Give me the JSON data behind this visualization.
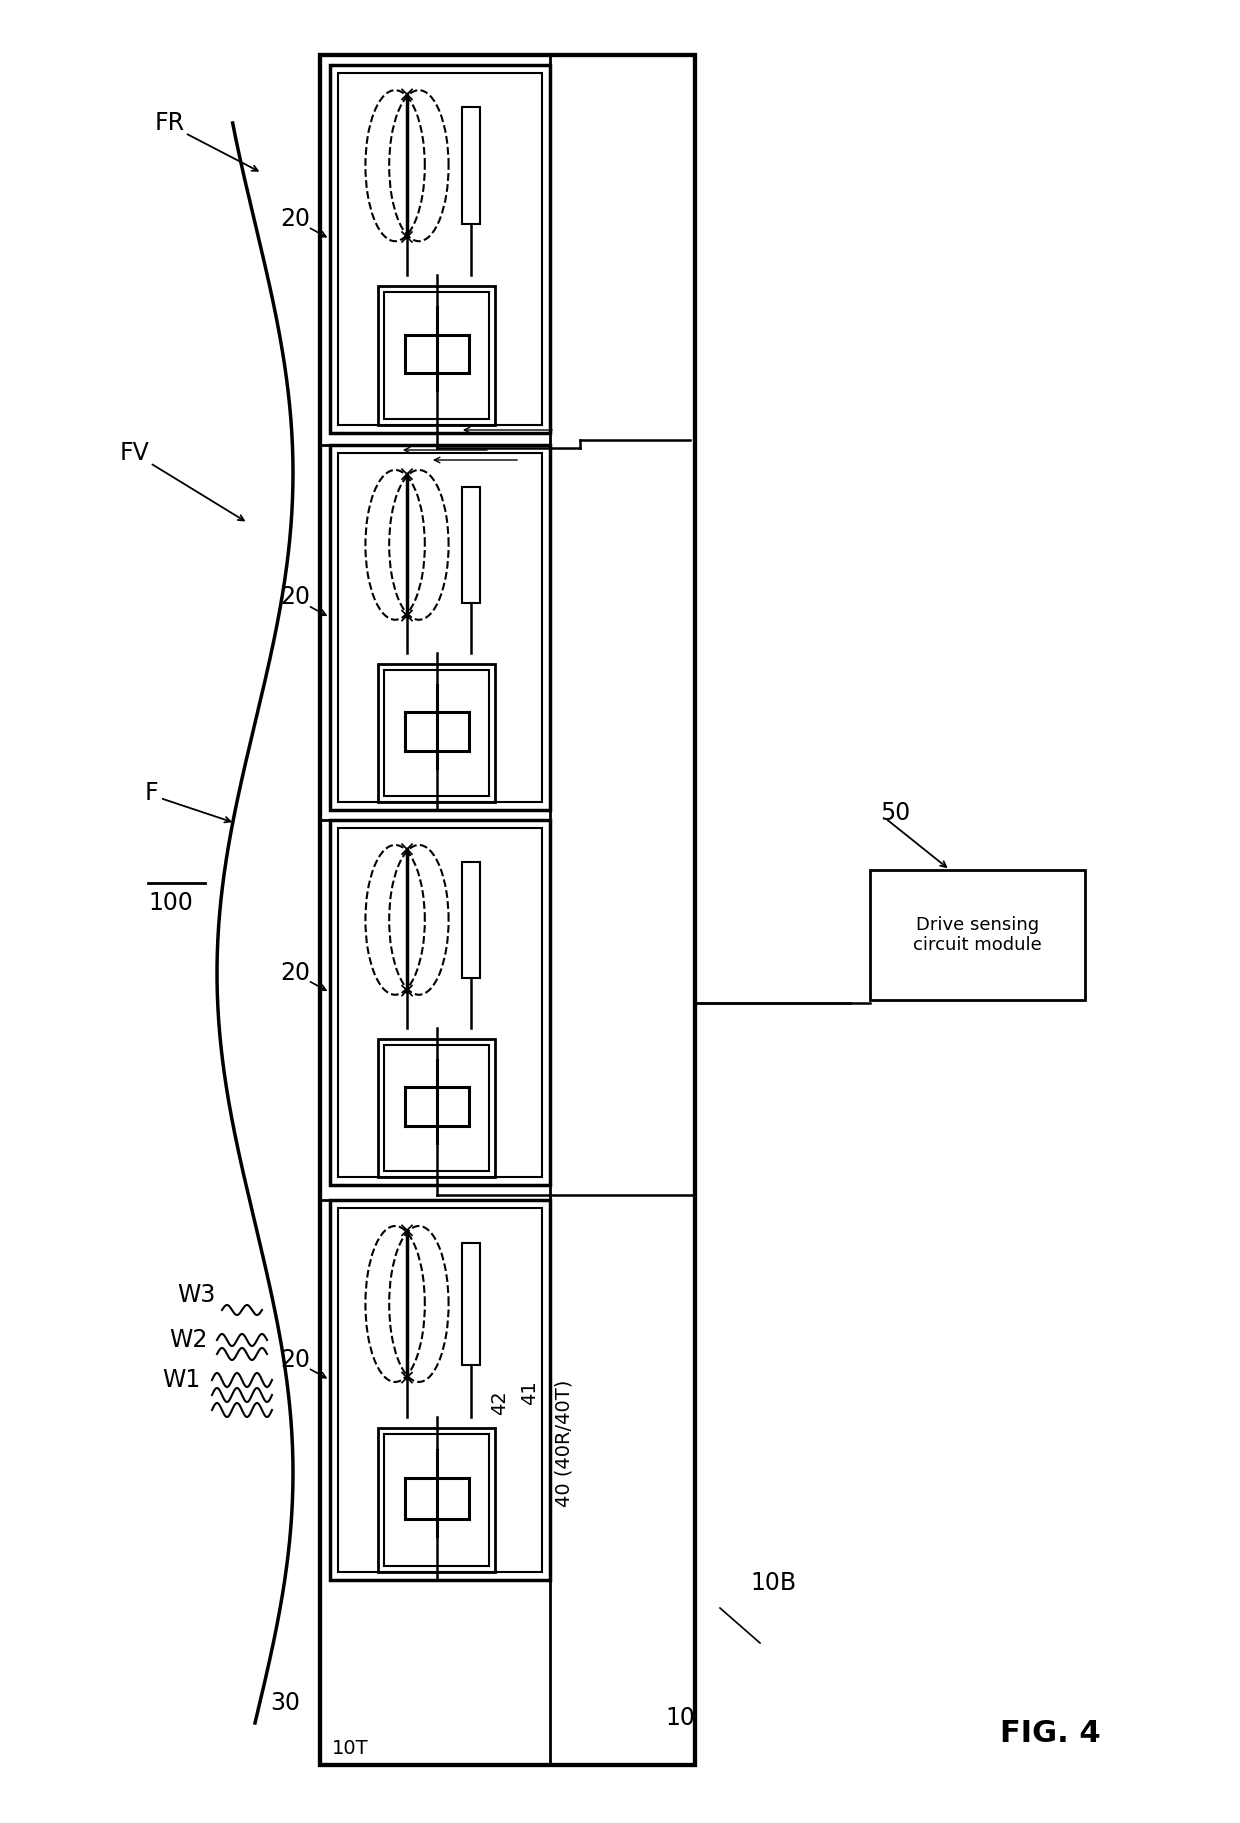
{
  "title": "FIG. 4",
  "bg_color": "#ffffff",
  "line_color": "#000000",
  "fig_width": 12.4,
  "fig_height": 18.23,
  "label_100": "100",
  "label_FR": "FR",
  "label_FV": "FV",
  "label_F": "F",
  "label_10": "10",
  "label_10T": "10T",
  "label_10B": "10B",
  "label_20": "20",
  "label_30": "30",
  "label_40": "40 (40R/40T)",
  "label_41": "41",
  "label_42": "42",
  "label_50": "50",
  "label_W1": "W1",
  "label_W2": "W2",
  "label_W3": "W3",
  "label_box50": "Drive sensing\ncircuit module"
}
